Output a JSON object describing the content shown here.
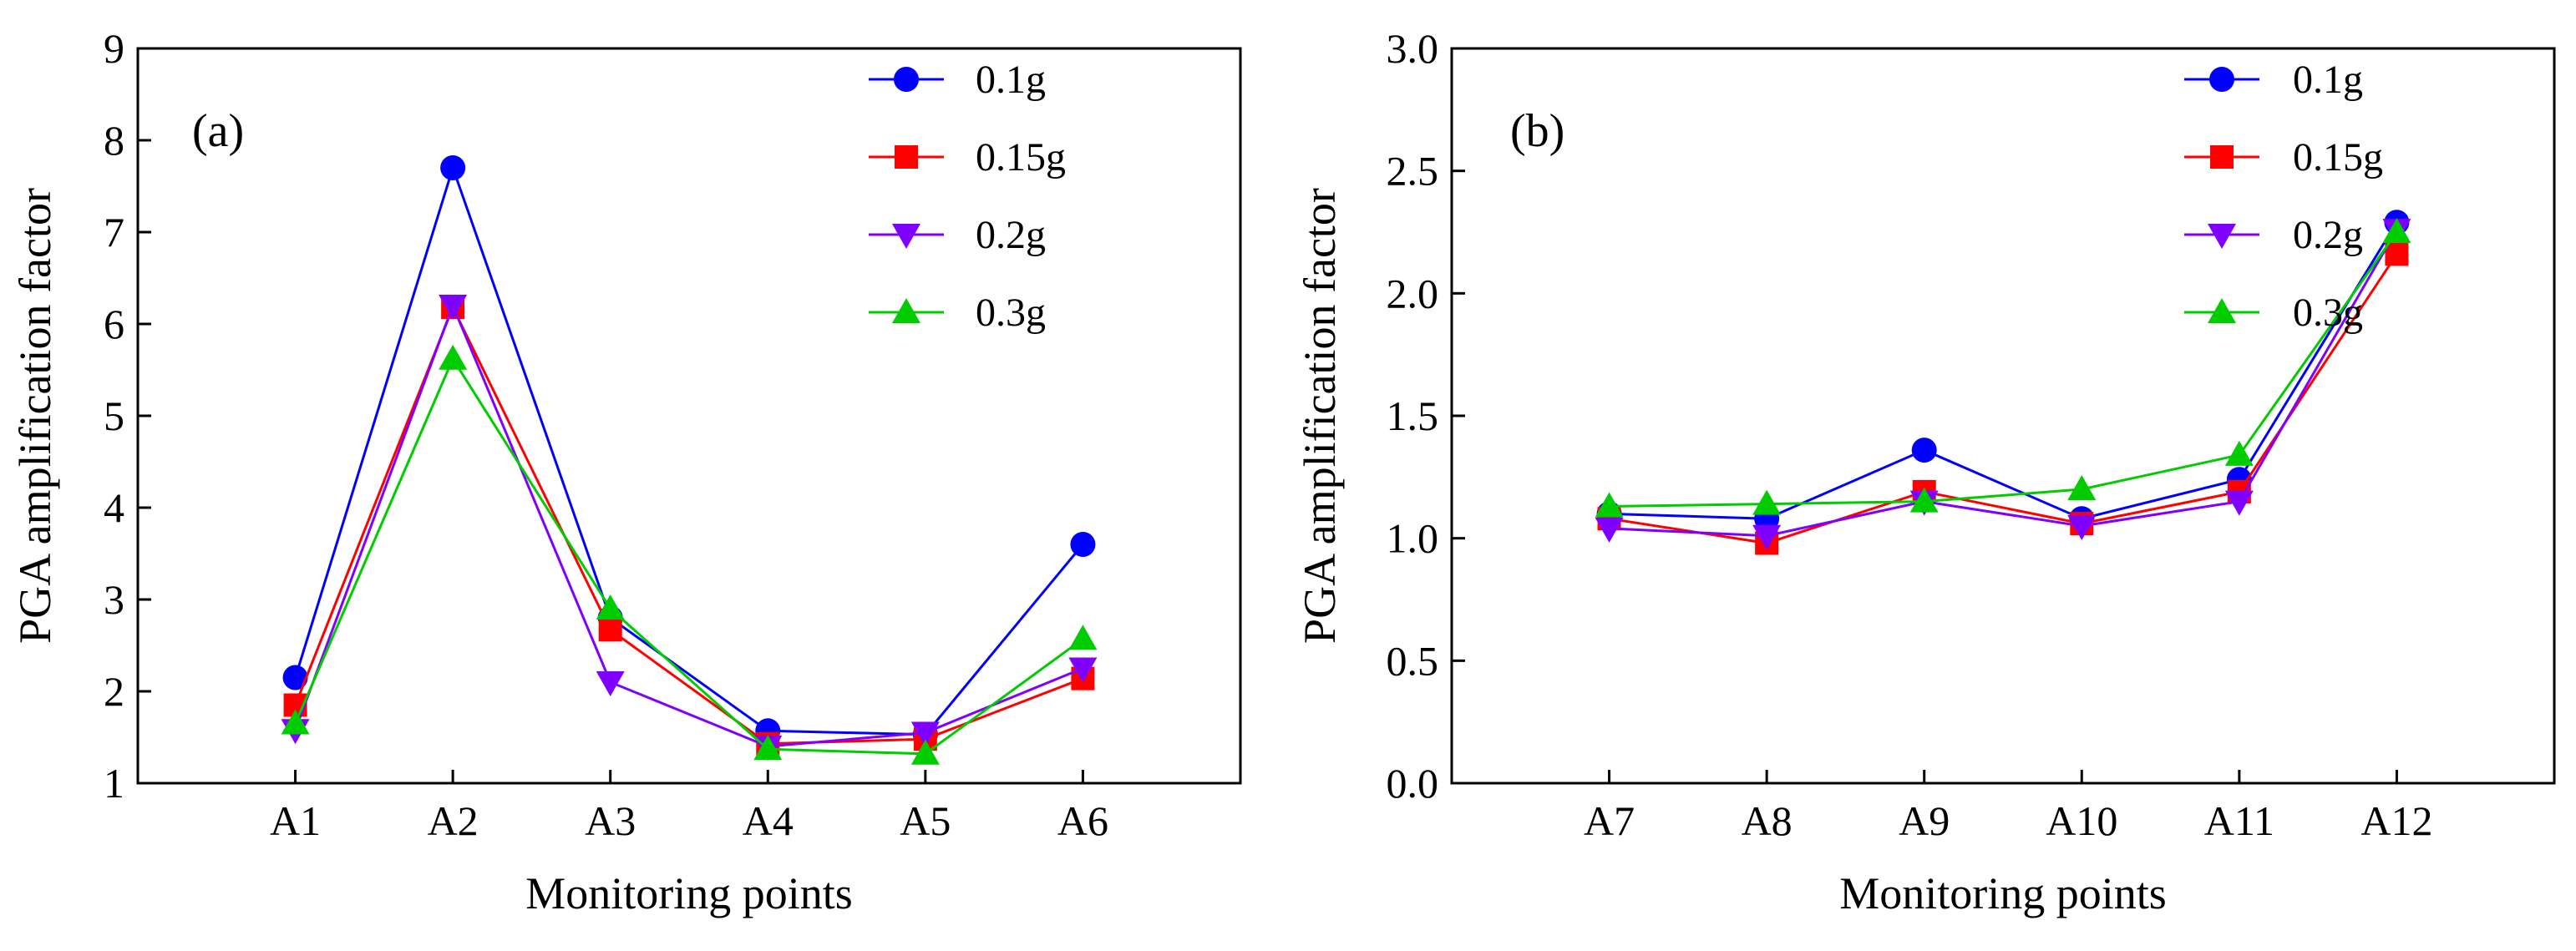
{
  "chart_data": [
    {
      "type": "line",
      "panel_label": "(a)",
      "xlabel": "Monitoring points",
      "ylabel": "PGA amplification factor",
      "categories": [
        "A1",
        "A2",
        "A3",
        "A4",
        "A5",
        "A6"
      ],
      "ylim": [
        1,
        9
      ],
      "yticks": [
        1,
        2,
        3,
        4,
        5,
        6,
        7,
        8,
        9
      ],
      "ytick_labels": [
        "1",
        "2",
        "3",
        "4",
        "5",
        "6",
        "7",
        "8",
        "9"
      ],
      "grid": false,
      "legend_position": "top-right",
      "series": [
        {
          "name": "0.1g",
          "color": "#0000ff",
          "marker": "circle",
          "values": [
            2.15,
            7.7,
            2.8,
            1.57,
            1.53,
            3.6
          ]
        },
        {
          "name": "0.15g",
          "color": "#ff0000",
          "marker": "square",
          "values": [
            1.85,
            6.18,
            2.67,
            1.43,
            1.48,
            2.14
          ]
        },
        {
          "name": "0.2g",
          "color": "#7f00ff",
          "marker": "triangle-down",
          "values": [
            1.58,
            6.2,
            2.1,
            1.4,
            1.55,
            2.25
          ]
        },
        {
          "name": "0.3g",
          "color": "#00cc00",
          "marker": "triangle-up",
          "values": [
            1.65,
            5.62,
            2.9,
            1.37,
            1.32,
            2.57
          ]
        }
      ]
    },
    {
      "type": "line",
      "panel_label": "(b)",
      "xlabel": "Monitoring points",
      "ylabel": "PGA amplification factor",
      "categories": [
        "A7",
        "A8",
        "A9",
        "A10",
        "A11",
        "A12"
      ],
      "ylim": [
        0,
        3
      ],
      "yticks": [
        0,
        0.5,
        1,
        1.5,
        2,
        2.5,
        3
      ],
      "ytick_labels": [
        "0.0",
        "0.5",
        "1.0",
        "1.5",
        "2.0",
        "2.5",
        "3.0"
      ],
      "grid": false,
      "legend_position": "top-right",
      "series": [
        {
          "name": "0.1g",
          "color": "#0000ff",
          "marker": "circle",
          "values": [
            1.1,
            1.08,
            1.36,
            1.08,
            1.24,
            2.29
          ]
        },
        {
          "name": "0.15g",
          "color": "#ff0000",
          "marker": "square",
          "values": [
            1.08,
            0.98,
            1.19,
            1.06,
            1.19,
            2.16
          ]
        },
        {
          "name": "0.2g",
          "color": "#7f00ff",
          "marker": "triangle-down",
          "values": [
            1.04,
            1.01,
            1.15,
            1.05,
            1.15,
            2.26
          ]
        },
        {
          "name": "0.3g",
          "color": "#00cc00",
          "marker": "triangle-up",
          "values": [
            1.13,
            1.14,
            1.15,
            1.2,
            1.34,
            2.25
          ]
        }
      ]
    }
  ]
}
